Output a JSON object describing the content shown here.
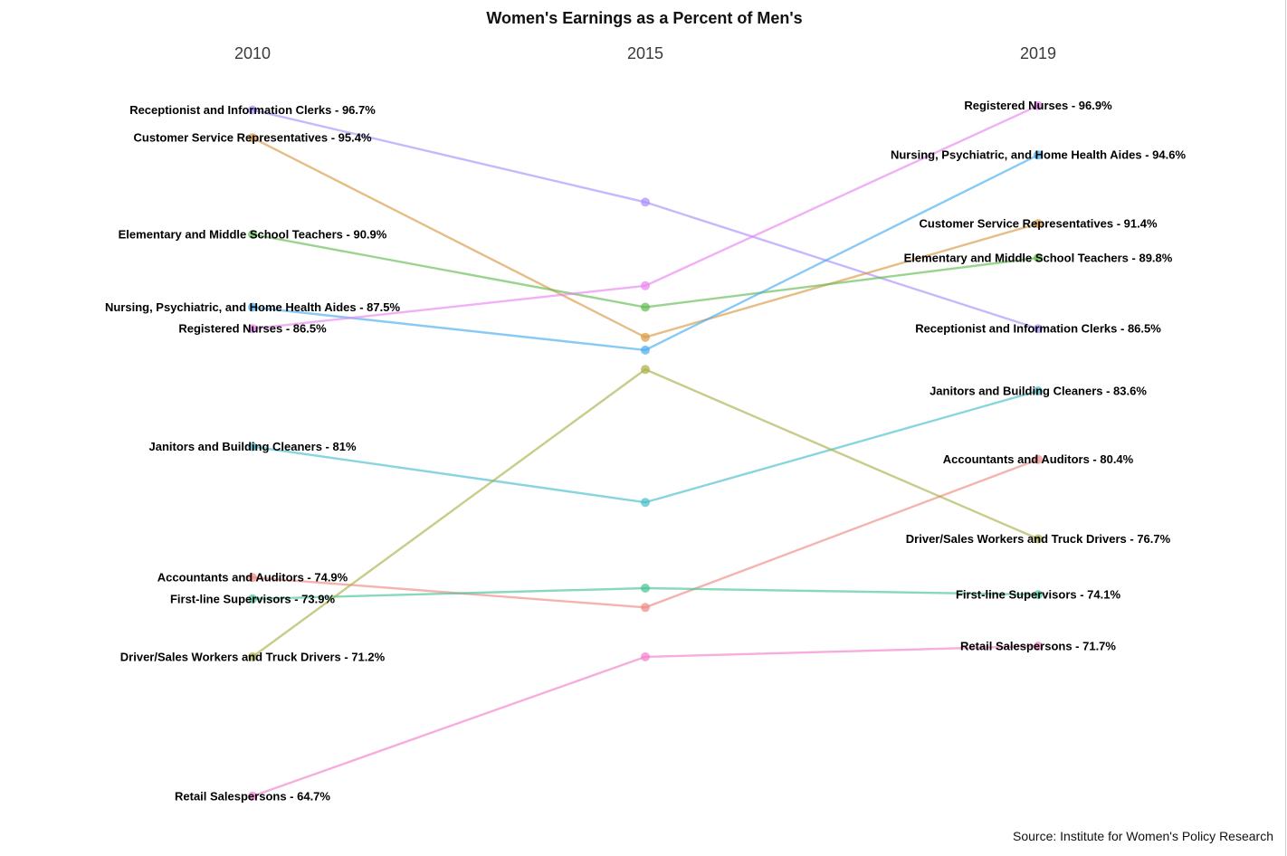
{
  "chart_data": {
    "type": "line",
    "title": "Women's Earnings as a Percent of Men's",
    "years": [
      "2010",
      "2015",
      "2019"
    ],
    "y_unit": "percent",
    "ylim": [
      63,
      98
    ],
    "grid": false,
    "legend": "none",
    "series": [
      {
        "name": "Receptionist and Information Clerks",
        "color": "#a78bfa",
        "values": [
          96.7,
          92.4,
          86.5
        ],
        "labels": [
          "Receptionist and Information Clerks - 96.7%",
          "",
          "Receptionist and Information Clerks - 86.5%"
        ]
      },
      {
        "name": "Customer Service Representatives",
        "color": "#d9953d",
        "values": [
          95.4,
          86.1,
          91.4
        ],
        "labels": [
          "Customer Service Representatives - 95.4%",
          "",
          "Customer Service Representatives - 91.4%"
        ]
      },
      {
        "name": "Elementary and Middle School Teachers",
        "color": "#5cb84a",
        "values": [
          90.9,
          87.5,
          89.8
        ],
        "labels": [
          "Elementary and Middle School Teachers - 90.9%",
          "",
          "Elementary and Middle School Teachers - 89.8%"
        ]
      },
      {
        "name": "Nursing, Psychiatric, and Home Health Aides",
        "color": "#3fa9ef",
        "values": [
          87.5,
          85.5,
          94.6
        ],
        "labels": [
          "Nursing, Psychiatric, and Home Health Aides - 87.5%",
          "",
          "Nursing, Psychiatric, and Home Health Aides - 94.6%"
        ]
      },
      {
        "name": "Registered Nurses",
        "color": "#e97ff0",
        "values": [
          86.5,
          88.5,
          96.9
        ],
        "labels": [
          "Registered Nurses - 86.5%",
          "",
          "Registered Nurses - 96.9%"
        ]
      },
      {
        "name": "Janitors and Building Cleaners",
        "color": "#3fbcc8",
        "values": [
          81.0,
          78.4,
          83.6
        ],
        "labels": [
          "Janitors and Building Cleaners - 81%",
          "",
          "Janitors and Building Cleaners - 83.6%"
        ]
      },
      {
        "name": "Accountants and Auditors",
        "color": "#ef857f",
        "values": [
          74.9,
          73.5,
          80.4
        ],
        "labels": [
          "Accountants and Auditors - 74.9%",
          "",
          "Accountants and Auditors - 80.4%"
        ]
      },
      {
        "name": "First-line Supervisors",
        "color": "#3fc28f",
        "values": [
          73.9,
          74.4,
          74.1
        ],
        "labels": [
          "First-line Supervisors - 73.9%",
          "",
          "First-line Supervisors - 74.1%"
        ]
      },
      {
        "name": "Driver/Sales Workers and Truck Drivers",
        "color": "#a7ad3f",
        "values": [
          71.2,
          84.6,
          76.7
        ],
        "labels": [
          "Driver/Sales Workers and Truck Drivers - 71.2%",
          "",
          "Driver/Sales Workers and Truck Drivers - 76.7%"
        ]
      },
      {
        "name": "Retail Salespersons",
        "color": "#f27bc7",
        "values": [
          64.7,
          71.2,
          71.7
        ],
        "labels": [
          "Retail Salespersons - 64.7%",
          "",
          "Retail Salespersons - 71.7%"
        ]
      }
    ]
  },
  "source": "Source: Institute for Women's Policy Research"
}
